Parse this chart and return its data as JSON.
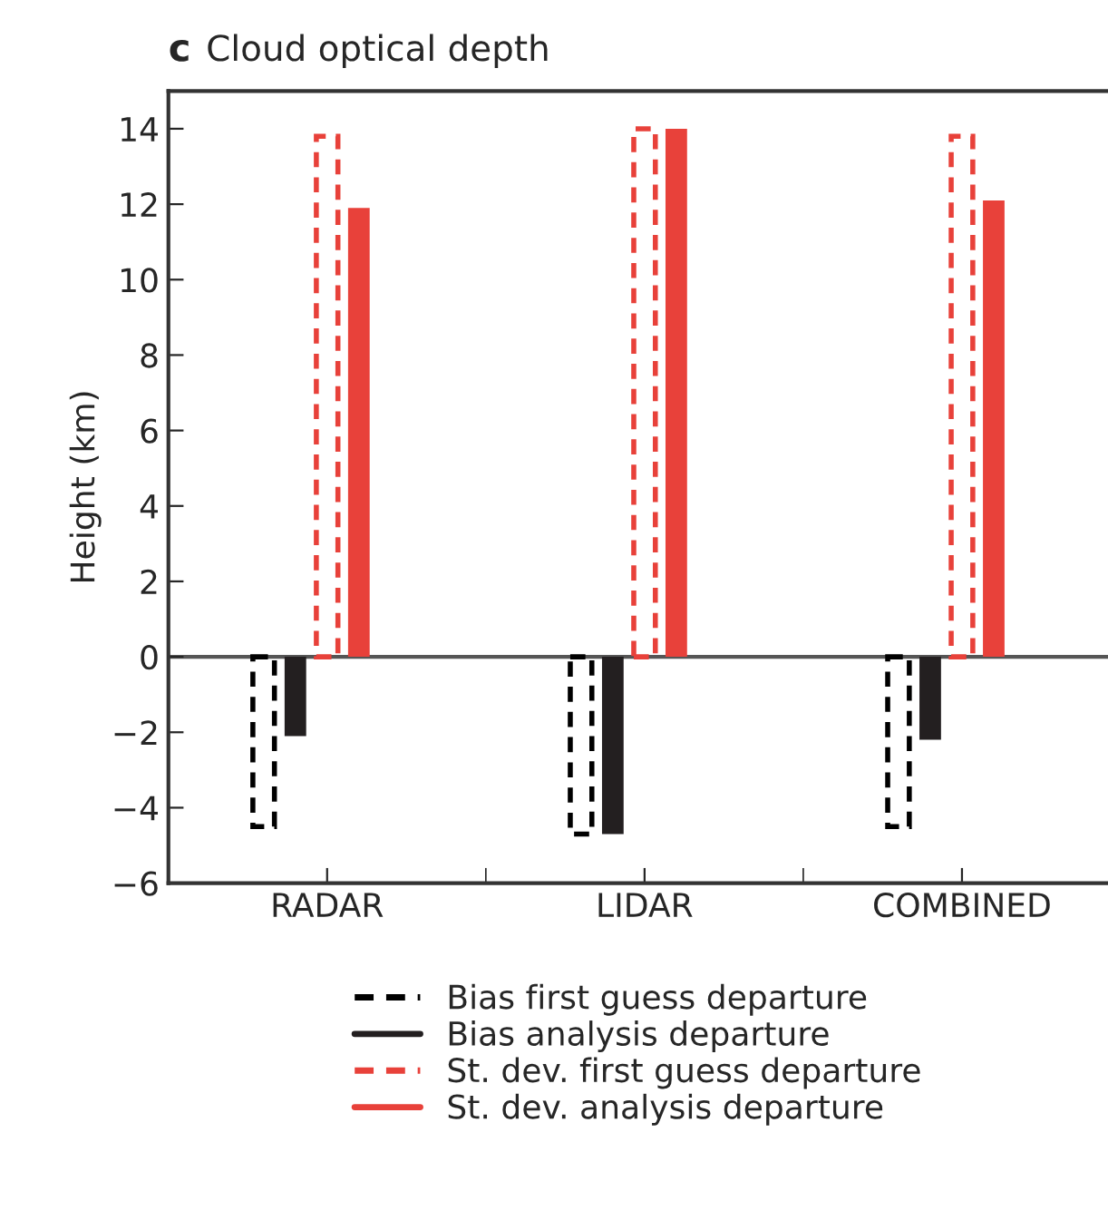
{
  "chart_data": {
    "type": "bar",
    "title": "Cloud optical depth",
    "annotations": [
      "c"
    ],
    "ylabel": "Height (km)",
    "categories": [
      "RADAR",
      "LIDAR",
      "COMBINED"
    ],
    "series": [
      {
        "name": "Bias first guess departure",
        "color": "#000000",
        "line_style": "dashed",
        "values": [
          -4.5,
          -4.7,
          -4.5
        ]
      },
      {
        "name": "Bias analysis departure",
        "color": "#231f20",
        "line_style": "solid",
        "values": [
          -2.1,
          -4.7,
          -2.2
        ]
      },
      {
        "name": "St. dev. first guess departure",
        "color": "#e8413a",
        "line_style": "dashed",
        "values": [
          13.8,
          14.0,
          13.8
        ]
      },
      {
        "name": "St. dev. analysis departure",
        "color": "#e8413a",
        "line_style": "solid",
        "values": [
          11.9,
          14.0,
          12.1
        ]
      }
    ],
    "ylim": [
      -6,
      15
    ],
    "yticks": [
      -6,
      -4,
      -2,
      0,
      2,
      4,
      6,
      8,
      10,
      12,
      14
    ],
    "ref_lines": [
      {
        "axis": "y",
        "value": 0,
        "color": "#555555"
      }
    ],
    "grid": false,
    "legend": "bottom"
  }
}
